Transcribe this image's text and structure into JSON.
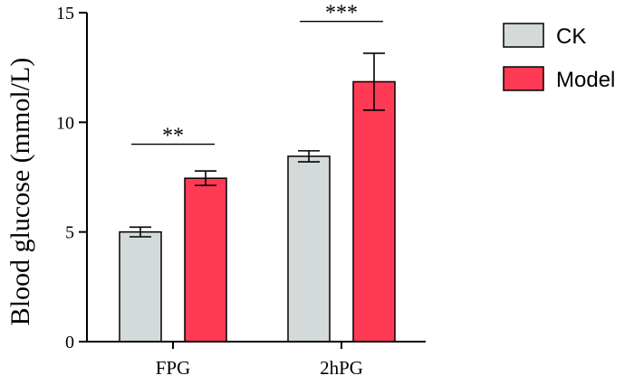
{
  "chart_data": {
    "type": "bar",
    "ylabel": "Blood glucose (mmol/L)",
    "xlabel": "",
    "ylim": [
      0,
      15
    ],
    "yticks": [
      0,
      5,
      10,
      15
    ],
    "categories": [
      "FPG",
      "2hPG"
    ],
    "series": [
      {
        "name": "CK",
        "values": [
          5.0,
          8.45
        ],
        "errors": [
          0.22,
          0.25
        ],
        "color": "#D4DADA"
      },
      {
        "name": "Model",
        "values": [
          7.45,
          11.85
        ],
        "errors": [
          0.33,
          1.3
        ],
        "color": "#FF3A55"
      }
    ],
    "significance": [
      {
        "category": "FPG",
        "label": "**",
        "y": 9.0
      },
      {
        "category": "2hPG",
        "label": "***",
        "y": 14.6
      }
    ],
    "legend_position": "top-right"
  }
}
